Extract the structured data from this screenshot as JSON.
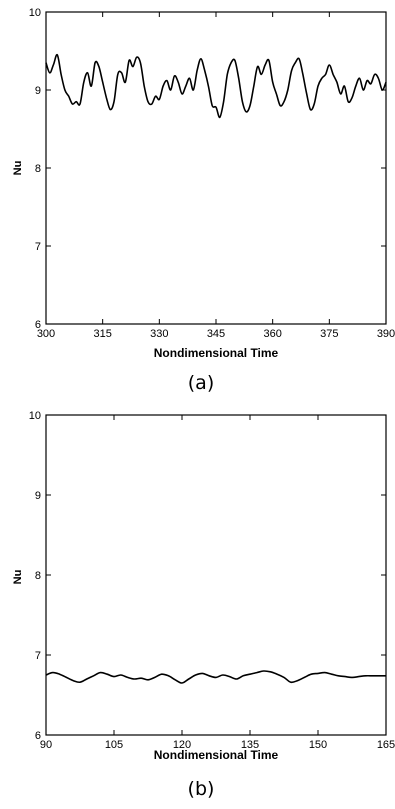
{
  "chart_data": [
    {
      "type": "line",
      "caption": "(a)",
      "xlabel": "Nondimensional Time",
      "ylabel": "Nu",
      "xlim": [
        300,
        390
      ],
      "ylim": [
        6,
        10
      ],
      "xticks": [
        300,
        315,
        330,
        345,
        360,
        375,
        390
      ],
      "yticks": [
        6,
        7,
        8,
        9,
        10
      ],
      "series": [
        {
          "x": [
            300,
            301,
            302,
            303,
            304,
            305,
            306,
            307,
            308,
            309,
            310,
            311,
            312,
            313,
            314,
            315,
            316,
            317,
            318,
            319,
            320,
            321,
            322,
            323,
            324,
            325,
            326,
            327,
            328,
            329,
            330,
            331,
            332,
            333,
            334,
            335,
            336,
            337,
            338,
            339,
            340,
            341,
            342,
            343,
            344,
            345,
            346,
            347,
            348,
            349,
            350,
            351,
            352,
            353,
            354,
            355,
            356,
            357,
            358,
            359,
            360,
            361,
            362,
            363,
            364,
            365,
            366,
            367,
            368,
            369,
            370,
            371,
            372,
            373,
            374,
            375,
            376,
            377,
            378,
            379,
            380,
            381,
            382,
            383,
            384,
            385,
            386,
            387,
            388,
            389,
            390
          ],
          "y": [
            9.35,
            9.22,
            9.33,
            9.45,
            9.2,
            9.0,
            8.92,
            8.82,
            8.85,
            8.82,
            9.1,
            9.22,
            9.05,
            9.35,
            9.3,
            9.1,
            8.9,
            8.75,
            8.85,
            9.2,
            9.22,
            9.1,
            9.38,
            9.3,
            9.42,
            9.35,
            9.05,
            8.85,
            8.82,
            8.92,
            8.88,
            9.05,
            9.12,
            9.0,
            9.18,
            9.1,
            8.95,
            9.05,
            9.15,
            9.0,
            9.25,
            9.4,
            9.25,
            9.05,
            8.8,
            8.78,
            8.65,
            8.85,
            9.2,
            9.35,
            9.38,
            9.15,
            8.85,
            8.72,
            8.8,
            9.05,
            9.3,
            9.2,
            9.32,
            9.38,
            9.1,
            8.95,
            8.8,
            8.85,
            9.0,
            9.25,
            9.35,
            9.4,
            9.2,
            8.95,
            8.75,
            8.82,
            9.05,
            9.15,
            9.2,
            9.32,
            9.2,
            9.1,
            8.95,
            9.05,
            8.85,
            8.9,
            9.05,
            9.15,
            9.0,
            9.12,
            9.08,
            9.2,
            9.15,
            9.0,
            9.1
          ]
        }
      ]
    },
    {
      "type": "line",
      "caption": "(b)",
      "xlabel": "Nondimensional Time",
      "ylabel": "Nu",
      "xlim": [
        90,
        165
      ],
      "ylim": [
        6,
        10
      ],
      "xticks": [
        90,
        105,
        120,
        135,
        150,
        165
      ],
      "yticks": [
        6,
        7,
        8,
        9,
        10
      ],
      "series": [
        {
          "x": [
            90,
            91.5,
            93,
            94.5,
            96,
            97.5,
            99,
            100.5,
            102,
            103.5,
            105,
            106.5,
            108,
            109.5,
            111,
            112.5,
            114,
            115.5,
            117,
            118.5,
            120,
            121.5,
            123,
            124.5,
            126,
            127.5,
            129,
            130.5,
            132,
            133.5,
            135,
            136.5,
            138,
            139.5,
            141,
            142.5,
            144,
            145.5,
            147,
            148.5,
            150,
            151.5,
            153,
            154.5,
            156,
            157.5,
            159,
            160.5,
            162,
            163.5,
            165
          ],
          "y": [
            6.75,
            6.78,
            6.76,
            6.72,
            6.68,
            6.66,
            6.7,
            6.74,
            6.78,
            6.76,
            6.73,
            6.75,
            6.72,
            6.7,
            6.71,
            6.69,
            6.72,
            6.76,
            6.74,
            6.69,
            6.65,
            6.7,
            6.75,
            6.77,
            6.74,
            6.72,
            6.75,
            6.73,
            6.7,
            6.74,
            6.76,
            6.78,
            6.8,
            6.79,
            6.76,
            6.72,
            6.66,
            6.68,
            6.72,
            6.76,
            6.77,
            6.78,
            6.76,
            6.74,
            6.73,
            6.72,
            6.73,
            6.74,
            6.74,
            6.74,
            6.74
          ]
        }
      ]
    }
  ]
}
